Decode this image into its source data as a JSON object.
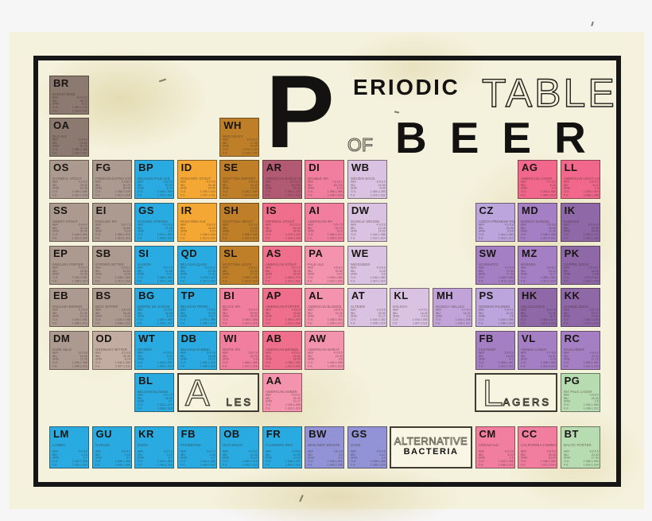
{
  "title": {
    "p": "P",
    "eriodic": "ERIODIC",
    "table": "TABLE",
    "of": "OF",
    "beer": "BEER"
  },
  "group_boxes": {
    "ales": {
      "big": "A",
      "rest": "LES"
    },
    "lagers": {
      "big": "L",
      "rest": "AGERS"
    },
    "alternative": {
      "line1": "ALTERNATIVE",
      "line2": "BACTERIA"
    }
  },
  "stats_labels": [
    "ABV",
    "IBU",
    "SRM",
    "O.G",
    "F.G"
  ],
  "colors": {
    "taupe_dark": "#8C7A71",
    "taupe": "#AC9A90",
    "taupe_light": "#C2ABA0",
    "blue": "#29ABE2",
    "orange": "#F5A733",
    "ochre": "#BE7F28",
    "rose": "#B25A74",
    "red_pink": "#EE6E8C",
    "pink": "#F17E9E",
    "pink_light": "#F493AE",
    "hot_pink": "#F2678C",
    "lavender": "#D9C2E2",
    "lavender_med": "#C2A3D9",
    "purple_light": "#BCA4DC",
    "purple": "#A57FC4",
    "purple_dark": "#8F68A8",
    "periwinkle": "#9193D6",
    "green": "#B7DCB2"
  },
  "cells": [
    {
      "sym": "BR",
      "name": "BARLEYWINE",
      "col": 1,
      "row": 1,
      "color": "taupe_dark",
      "stats": [
        "8.0-12.0",
        "35-70",
        "8-22",
        "1.080-1.120",
        "1.018-1.030"
      ]
    },
    {
      "sym": "OA",
      "name": "OLD ALE",
      "col": 1,
      "row": 2,
      "color": "taupe_dark",
      "stats": [
        "5.5-9.0",
        "30-60",
        "10-22",
        "1.055-1.088",
        "1.015-1.022"
      ]
    },
    {
      "sym": "WH",
      "name": "WEE HEAVY",
      "col": 5,
      "row": 2,
      "color": "ochre",
      "stats": [
        "6.5-10.0",
        "17-35",
        "14-25",
        "1.070-1.130",
        "1.018-1.040"
      ]
    },
    {
      "sym": "OS",
      "name": "OATMEAL STOUT",
      "col": 1,
      "row": 3,
      "color": "taupe",
      "stats": [
        "4.2-5.9",
        "25-40",
        "22-40",
        "1.045-1.065",
        "1.010-1.018"
      ]
    },
    {
      "sym": "FG",
      "name": "FOREIGN EXTRA STOUT",
      "col": 2,
      "row": 3,
      "color": "taupe",
      "stats": [
        "6.3-8.0",
        "50-70",
        "30-40",
        "1.056-1.075",
        "1.010-1.018"
      ]
    },
    {
      "sym": "BP",
      "name": "BELGIAN PALE ALE",
      "col": 3,
      "row": 3,
      "color": "blue",
      "stats": [
        "4.8-5.5",
        "20-30",
        "8-14",
        "1.048-1.054",
        "1.010-1.014"
      ]
    },
    {
      "sym": "ID",
      "name": "IRISH DRY STOUT",
      "col": 4,
      "row": 3,
      "color": "orange",
      "stats": [
        "4.0-4.5",
        "25-45",
        "25-40",
        "1.036-1.044",
        "1.007-1.011"
      ]
    },
    {
      "sym": "SE",
      "name": "SCOTTISH EXPORT",
      "col": 5,
      "row": 3,
      "color": "ochre",
      "stats": [
        "3.9-6.0",
        "15-30",
        "13-22",
        "1.040-1.060",
        "1.010-1.016"
      ]
    },
    {
      "sym": "AR",
      "name": "AMERICAN BARLEYWINE",
      "col": 6,
      "row": 3,
      "color": "rose",
      "stats": [
        "8.0-12.0",
        "50-100",
        "10-19",
        "1.080-1.120",
        "1.016-1.030"
      ]
    },
    {
      "sym": "DI",
      "name": "DOUBLE IPA",
      "col": 7,
      "row": 3,
      "color": "pink",
      "stats": [
        "7.5-10.0",
        "60-120",
        "6-14",
        "1.065-1.085",
        "1.008-1.018"
      ]
    },
    {
      "sym": "WB",
      "name": "WEIZEN BOCK",
      "col": 8,
      "row": 3,
      "color": "lavender",
      "stats": [
        "6.5-9.0",
        "15-30",
        "6-25",
        "1.064-1.090",
        "1.015-1.022"
      ]
    },
    {
      "sym": "AG",
      "name": "AMERICAN LAGER",
      "col": 12,
      "row": 3,
      "color": "hot_pink",
      "stats": [
        "4.2-5.3",
        "8-18",
        "2-4",
        "1.040-1.050",
        "1.004-1.010"
      ]
    },
    {
      "sym": "LL",
      "name": "AMERICAN LIGHT LAGER",
      "col": 13,
      "row": 3,
      "color": "hot_pink",
      "stats": [
        "2.8-4.2",
        "8-12",
        "2-3",
        "1.028-1.040",
        "0.998-1.008"
      ]
    },
    {
      "sym": "SS",
      "name": "SWEET STOUT",
      "col": 1,
      "row": 4,
      "color": "taupe",
      "stats": [
        "4.0-6.0",
        "20-40",
        "30-40",
        "1.044-1.060",
        "1.012-1.024"
      ]
    },
    {
      "sym": "EI",
      "name": "ENGLISH IPA",
      "col": 2,
      "row": 4,
      "color": "taupe",
      "stats": [
        "5.0-7.5",
        "40-60",
        "6-14",
        "1.050-1.075",
        "1.010-1.018"
      ]
    },
    {
      "sym": "GS",
      "name": "GOLDEN STRONG",
      "col": 3,
      "row": 4,
      "color": "blue",
      "stats": [
        "7.5-10.5",
        "22-35",
        "3-6",
        "1.070-1.095",
        "1.005-1.016"
      ]
    },
    {
      "sym": "IR",
      "name": "IRISH RED ALE",
      "col": 4,
      "row": 4,
      "color": "orange",
      "stats": [
        "3.8-5.0",
        "18-28",
        "9-14",
        "1.036-1.046",
        "1.010-1.014"
      ]
    },
    {
      "sym": "SH",
      "name": "SCOTTISH HEAVY",
      "col": 5,
      "row": 4,
      "color": "ochre",
      "stats": [
        "3.3-3.9",
        "10-20",
        "13-22",
        "1.035-1.040",
        "1.010-1.015"
      ]
    },
    {
      "sym": "IS",
      "name": "IMPERIAL STOUT",
      "col": 6,
      "row": 4,
      "color": "red_pink",
      "stats": [
        "8.0-12.0",
        "50-90",
        "30-40",
        "1.075-1.115",
        "1.018-1.030"
      ]
    },
    {
      "sym": "AI",
      "name": "AMERICAN IPA",
      "col": 7,
      "row": 4,
      "color": "pink",
      "stats": [
        "5.5-7.5",
        "40-70",
        "6-14",
        "1.056-1.070",
        "1.008-1.014"
      ]
    },
    {
      "sym": "DW",
      "name": "DUNKLE WEISSE",
      "col": 8,
      "row": 4,
      "color": "lavender",
      "stats": [
        "4.3-5.6",
        "10-18",
        "14-23",
        "1.044-1.056",
        "1.010-1.014"
      ]
    },
    {
      "sym": "CZ",
      "name": "CZECH PREMIUM PALE",
      "col": 11,
      "row": 4,
      "color": "purple_light",
      "stats": [
        "4.2-5.8",
        "30-45",
        "3.5-6",
        "1.044-1.060",
        "1.013-1.017"
      ]
    },
    {
      "sym": "MD",
      "name": "MUNICH DUNKEL",
      "col": 12,
      "row": 4,
      "color": "purple",
      "stats": [
        "4.5-5.6",
        "18-28",
        "14-28",
        "1.048-1.056",
        "1.010-1.016"
      ]
    },
    {
      "sym": "IK",
      "name": "EISBOCK",
      "col": 13,
      "row": 4,
      "color": "purple_dark",
      "stats": [
        "9.0-14.0",
        "25-35",
        "18-30",
        "1.078-1.120",
        "1.020-1.035"
      ]
    },
    {
      "sym": "EP",
      "name": "ENGLISH PORTER",
      "col": 1,
      "row": 5,
      "color": "taupe",
      "stats": [
        "4.0-5.4",
        "18-35",
        "20-30",
        "1.040-1.052",
        "1.008-1.014"
      ]
    },
    {
      "sym": "SB",
      "name": "STRONG BITTER",
      "col": 2,
      "row": 5,
      "color": "taupe",
      "stats": [
        "4.6-6.2",
        "30-50",
        "8-18",
        "1.048-1.060",
        "1.010-1.016"
      ]
    },
    {
      "sym": "SI",
      "name": "SAISON",
      "col": 3,
      "row": 5,
      "color": "blue",
      "stats": [
        "5.0-7.0",
        "20-35",
        "5-14",
        "1.048-1.065",
        "1.002-1.008"
      ]
    },
    {
      "sym": "QD",
      "name": "BELGIAN QUAD",
      "col": 4,
      "row": 5,
      "color": "blue",
      "stats": [
        "8.0-12.0",
        "20-35",
        "12-22",
        "1.075-1.110",
        "1.010-1.024"
      ]
    },
    {
      "sym": "SL",
      "name": "SCOTTISH LIGHT",
      "col": 5,
      "row": 5,
      "color": "ochre",
      "stats": [
        "2.5-3.2",
        "10-20",
        "17-22",
        "1.030-1.035",
        "1.010-1.013"
      ]
    },
    {
      "sym": "AS",
      "name": "AMERICAN STOUT",
      "col": 6,
      "row": 5,
      "color": "red_pink",
      "stats": [
        "5.0-7.0",
        "35-75",
        "30-40",
        "1.050-1.075",
        "1.010-1.022"
      ]
    },
    {
      "sym": "PA",
      "name": "PALE ALE",
      "col": 7,
      "row": 5,
      "color": "pink_light",
      "stats": [
        "4.5-6.2",
        "30-50",
        "5-10",
        "1.045-1.060",
        "1.010-1.015"
      ]
    },
    {
      "sym": "WE",
      "name": "WEISSBIER",
      "col": 8,
      "row": 5,
      "color": "lavender",
      "stats": [
        "4.3-5.6",
        "8-15",
        "2-6",
        "1.044-1.052",
        "1.010-1.014"
      ]
    },
    {
      "sym": "SW",
      "name": "SCHWARTZ",
      "col": 11,
      "row": 5,
      "color": "purple",
      "stats": [
        "4.4-5.4",
        "20-30",
        "17-30",
        "1.046-1.052",
        "1.010-1.016"
      ]
    },
    {
      "sym": "MZ",
      "name": "MÄRZEN",
      "col": 12,
      "row": 5,
      "color": "purple",
      "stats": [
        "5.8-6.3",
        "18-24",
        "8-17",
        "1.054-1.060",
        "1.010-1.014"
      ]
    },
    {
      "sym": "PK",
      "name": "DOPPEL BOCK",
      "col": 13,
      "row": 5,
      "color": "purple_dark",
      "stats": [
        "7.0-10.0",
        "16-26",
        "6-25",
        "1.072-1.112",
        "1.016-1.024"
      ]
    },
    {
      "sym": "EB",
      "name": "ENGLISH BROWN",
      "col": 1,
      "row": 6,
      "color": "taupe",
      "stats": [
        "4.2-5.4",
        "20-30",
        "12-22",
        "1.040-1.052",
        "1.008-1.013"
      ]
    },
    {
      "sym": "BS",
      "name": "BEST BITTER",
      "col": 2,
      "row": 6,
      "color": "taupe",
      "stats": [
        "3.8-4.6",
        "25-40",
        "8-16",
        "1.040-1.048",
        "1.008-1.012"
      ]
    },
    {
      "sym": "BG",
      "name": "BIERRE DE GARDE",
      "col": 3,
      "row": 6,
      "color": "blue",
      "stats": [
        "6.0-8.5",
        "18-28",
        "6-19",
        "1.060-1.080",
        "1.008-1.016"
      ]
    },
    {
      "sym": "TP",
      "name": "BELGIAN TRIPEL",
      "col": 4,
      "row": 6,
      "color": "blue",
      "stats": [
        "7.5-9.5",
        "20-40",
        "4.5-7",
        "1.075-1.085",
        "1.008-1.014"
      ]
    },
    {
      "sym": "BI",
      "name": "BLACK IPA",
      "col": 5,
      "row": 6,
      "color": "pink",
      "stats": [
        "5.5-9.0",
        "50-90",
        "25-40",
        "1.050-1.085",
        "1.010-1.018"
      ]
    },
    {
      "sym": "AP",
      "name": "AMERICAN PORTER",
      "col": 6,
      "row": 6,
      "color": "red_pink",
      "stats": [
        "4.8-6.5",
        "25-50",
        "22-40",
        "1.050-1.070",
        "1.012-1.018"
      ]
    },
    {
      "sym": "AL",
      "name": "AMERICAN BLONDE",
      "col": 7,
      "row": 6,
      "color": "pink_light",
      "stats": [
        "3.8-5.5",
        "15-28",
        "3-6",
        "1.038-1.054",
        "1.008-1.013"
      ]
    },
    {
      "sym": "AT",
      "name": "ALTBIER",
      "col": 8,
      "row": 6,
      "color": "lavender",
      "stats": [
        "4.3-5.5",
        "25-50",
        "11-17",
        "1.044-1.052",
        "1.008-1.014"
      ]
    },
    {
      "sym": "KL",
      "name": "KOLSCH",
      "col": 9,
      "row": 6,
      "color": "lavender",
      "stats": [
        "4.4-5.2",
        "18-30",
        "3.5-5",
        "1.044-1.050",
        "1.007-1.011"
      ]
    },
    {
      "sym": "MH",
      "name": "MUNICH HELLES",
      "col": 10,
      "row": 6,
      "color": "lavender_med",
      "stats": [
        "4.7-5.4",
        "16-22",
        "3-5",
        "1.044-1.048",
        "1.006-1.012"
      ]
    },
    {
      "sym": "PS",
      "name": "GERMAN PILSNER",
      "col": 11,
      "row": 6,
      "color": "purple_light",
      "stats": [
        "4.4-5.2",
        "22-40",
        "2-5",
        "1.044-1.050",
        "1.008-1.013"
      ]
    },
    {
      "sym": "HK",
      "name": "HELLES BOCK",
      "col": 12,
      "row": 6,
      "color": "purple_dark",
      "stats": [
        "6.3-7.4",
        "23-35",
        "6-11",
        "1.064-1.072",
        "1.011-1.018"
      ]
    },
    {
      "sym": "KK",
      "name": "DUNKEL BOCK",
      "col": 13,
      "row": 6,
      "color": "purple_dark",
      "stats": [
        "6.3-7.2",
        "20-27",
        "14-22",
        "1.064-1.072",
        "1.013-1.019"
      ]
    },
    {
      "sym": "DM",
      "name": "DARK MILD",
      "col": 1,
      "row": 7,
      "color": "taupe",
      "stats": [
        "3.0-3.8",
        "10-25",
        "12-25",
        "1.030-1.038",
        "1.008-1.013"
      ]
    },
    {
      "sym": "OD",
      "name": "ORDINARY BITTER",
      "col": 2,
      "row": 7,
      "color": "taupe_light",
      "stats": [
        "3.2-3.8",
        "25-35",
        "8-14",
        "1.030-1.039",
        "1.007-1.011"
      ]
    },
    {
      "sym": "WT",
      "name": "WITBIER",
      "col": 3,
      "row": 7,
      "color": "blue",
      "stats": [
        "4.5-5.5",
        "8-20",
        "2-4",
        "1.044-1.052",
        "1.008-1.012"
      ]
    },
    {
      "sym": "DB",
      "name": "BELGIAN DUBBEL",
      "col": 4,
      "row": 7,
      "color": "blue",
      "stats": [
        "6.0-7.6",
        "15-25",
        "10-17",
        "1.062-1.075",
        "1.008-1.018"
      ]
    },
    {
      "sym": "WI",
      "name": "WHITE IPA",
      "col": 5,
      "row": 7,
      "color": "pink",
      "stats": [
        "5.5-7.0",
        "40-70",
        "5-8",
        "1.056-1.065",
        "1.010-1.016"
      ]
    },
    {
      "sym": "AB",
      "name": "AMERICAN BROWN",
      "col": 6,
      "row": 7,
      "color": "red_pink",
      "stats": [
        "4.3-6.2",
        "20-30",
        "18-35",
        "1.045-1.060",
        "1.010-1.016"
      ]
    },
    {
      "sym": "AW",
      "name": "AMERICAN WHEAT",
      "col": 7,
      "row": 7,
      "color": "pink_light",
      "stats": [
        "4.0-5.5",
        "15-30",
        "3-6",
        "1.040-1.055",
        "1.008-1.013"
      ]
    },
    {
      "sym": "FB",
      "name": "FESTBIER",
      "col": 11,
      "row": 7,
      "color": "purple",
      "stats": [
        "5.8-6.3",
        "18-25",
        "4-7",
        "1.054-1.057",
        "1.010-1.012"
      ]
    },
    {
      "sym": "VL",
      "name": "VIENNA LAGER",
      "col": 12,
      "row": 7,
      "color": "purple",
      "stats": [
        "4.7-5.5",
        "18-30",
        "9-15",
        "1.048-1.055",
        "1.010-1.014"
      ]
    },
    {
      "sym": "RC",
      "name": "RAUCHBIER",
      "col": 13,
      "row": 7,
      "color": "purple",
      "stats": [
        "4.8-6.0",
        "20-30",
        "12-22",
        "1.050-1.057",
        "1.012-1.016"
      ]
    },
    {
      "sym": "BL",
      "name": "BELGIAN BLONDE",
      "col": 3,
      "row": 8,
      "color": "blue",
      "stats": [
        "6.0-7.5",
        "15-30",
        "4-7",
        "1.062-1.075",
        "1.008-1.018"
      ]
    },
    {
      "sym": "AA",
      "name": "AMERICAN AMBER",
      "col": 6,
      "row": 8,
      "color": "pink_light",
      "stats": [
        "4.5-6.2",
        "25-40",
        "10-17",
        "1.045-1.060",
        "1.010-1.015"
      ]
    },
    {
      "sym": "PG",
      "name": "INT PALE LAGER",
      "col": 13,
      "row": 8,
      "color": "green",
      "stats": [
        "4.6-6.0",
        "18-25",
        "2-6",
        "1.042-1.050",
        "1.008-1.012"
      ]
    },
    {
      "sym": "LM",
      "name": "LAMBIC",
      "col": 1,
      "row": 9,
      "color": "blue",
      "stats": [
        "5.0-6.5",
        "0-10",
        "3-7",
        "1.040-1.054",
        "1.001-1.010"
      ]
    },
    {
      "sym": "GU",
      "name": "GUEUZE",
      "col": 2,
      "row": 9,
      "color": "blue",
      "stats": [
        "5.0-8.0",
        "0-10",
        "3-7",
        "1.040-1.060",
        "1.000-1.006"
      ]
    },
    {
      "sym": "KR",
      "name": "KRIEK",
      "col": 3,
      "row": 9,
      "color": "blue",
      "stats": [
        "5.0-7.0",
        "0-10",
        "3-7",
        "1.040-1.060",
        "1.000-1.010"
      ]
    },
    {
      "sym": "FB",
      "name": "FRAMBOISE",
      "col": 4,
      "row": 9,
      "color": "blue",
      "stats": [
        "5.0-7.0",
        "0-10",
        "3-7",
        "1.040-1.060",
        "1.000-1.010"
      ]
    },
    {
      "sym": "OB",
      "name": "OUD BRUIN",
      "col": 5,
      "row": 9,
      "color": "blue",
      "stats": [
        "4.0-8.0",
        "20-25",
        "15-22",
        "1.040-1.074",
        "1.002-1.012"
      ]
    },
    {
      "sym": "FR",
      "name": "FLANDERS RED",
      "col": 6,
      "row": 9,
      "color": "blue",
      "stats": [
        "4.6-6.5",
        "10-25",
        "10-16",
        "1.048-1.057",
        "1.002-1.012"
      ]
    },
    {
      "sym": "BW",
      "name": "BERLINER WEISSE",
      "col": 7,
      "row": 9,
      "color": "periwinkle",
      "stats": [
        "2.8-3.8",
        "3-8",
        "2-3",
        "1.028-1.032",
        "1.003-1.006"
      ]
    },
    {
      "sym": "GS",
      "name": "GOSE",
      "col": 8,
      "row": 9,
      "color": "periwinkle",
      "stats": [
        "4.2-4.8",
        "5-12",
        "3-4",
        "1.036-1.056",
        "1.006-1.010"
      ]
    },
    {
      "sym": "CM",
      "name": "CREAM ALE",
      "col": 11,
      "row": 9,
      "color": "pink",
      "stats": [
        "4.2-5.6",
        "8-20",
        "2-5",
        "1.042-1.055",
        "1.006-1.012"
      ]
    },
    {
      "sym": "CC",
      "name": "CALIFORNIA COMMON",
      "col": 12,
      "row": 9,
      "color": "pink",
      "stats": [
        "4.5-5.5",
        "30-45",
        "10-14",
        "1.048-1.054",
        "1.011-1.014"
      ]
    },
    {
      "sym": "BT",
      "name": "BALTIC PORTER",
      "col": 13,
      "row": 9,
      "color": "green",
      "stats": [
        "6.5-9.5",
        "20-40",
        "17-30",
        "1.060-1.090",
        "1.016-1.024"
      ]
    }
  ]
}
